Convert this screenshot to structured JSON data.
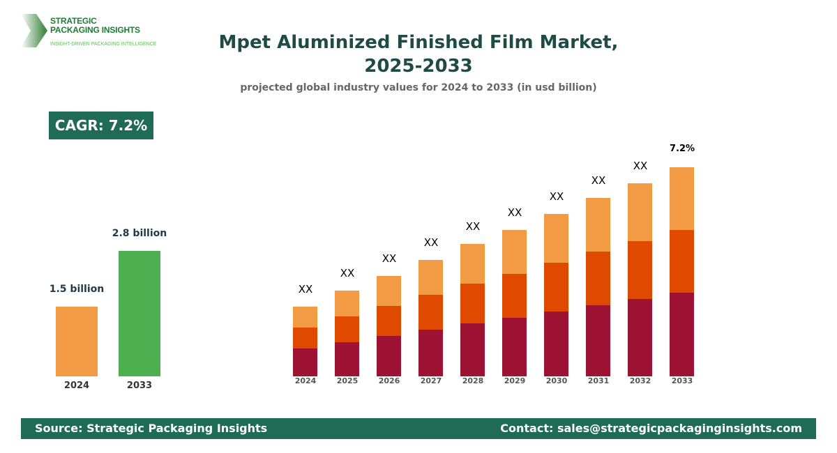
{
  "logo": {
    "line1": "STRATEGIC",
    "line2": "PACKAGING INSIGHTS",
    "tagline": "INSIGHT-DRIVEN PACKAGING INTELLIGENCE"
  },
  "header": {
    "title_line1": "Mpet Aluminized Finished Film Market,",
    "title_line2": "2025-2033",
    "subtitle": "projected global industry values for 2024 to 2033 (in usd billion)"
  },
  "cagr_badge": "CAGR: 7.2%",
  "chart_data": [
    {
      "type": "bar",
      "categories": [
        "2024",
        "2033"
      ],
      "values": [
        1.5,
        2.8
      ],
      "value_labels": [
        "1.5 billion",
        "2.8 billion"
      ],
      "colors": [
        "#f39a45",
        "#4caf50"
      ]
    },
    {
      "type": "bar",
      "stacked": true,
      "categories": [
        "2024",
        "2025",
        "2026",
        "2027",
        "2028",
        "2029",
        "2030",
        "2031",
        "2032",
        "2033"
      ],
      "series": [
        {
          "values": [
            0.4,
            0.49,
            0.58,
            0.67,
            0.76,
            0.84,
            0.93,
            1.02,
            1.11,
            1.2
          ],
          "color": "#9e1233"
        },
        {
          "values": [
            0.3,
            0.37,
            0.43,
            0.5,
            0.57,
            0.63,
            0.7,
            0.77,
            0.83,
            0.9
          ],
          "color": "#e04a00"
        },
        {
          "values": [
            0.3,
            0.37,
            0.43,
            0.5,
            0.57,
            0.63,
            0.7,
            0.77,
            0.83,
            0.9
          ],
          "color": "#f39a45"
        }
      ],
      "top_labels": [
        "XX",
        "XX",
        "XX",
        "XX",
        "XX",
        "XX",
        "XX",
        "XX",
        "XX",
        "7.2%"
      ]
    }
  ],
  "footer": {
    "source": "Source: Strategic Packaging Insights",
    "contact": "Contact: sales@strategicpackaginginsights.com"
  }
}
